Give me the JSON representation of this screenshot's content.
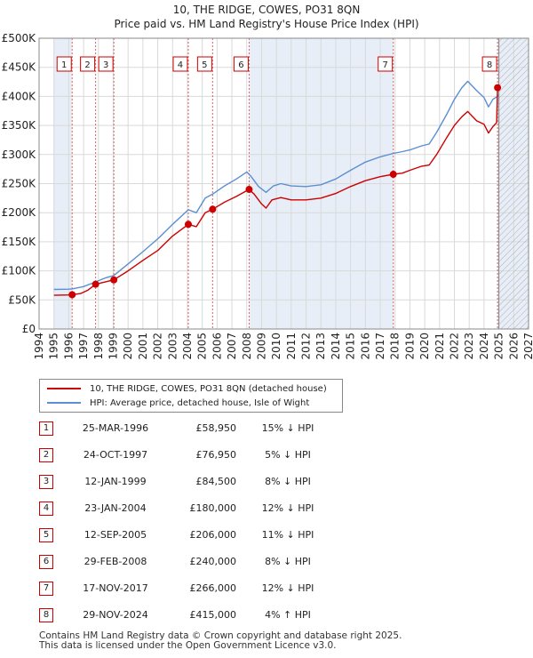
{
  "chart_data": {
    "type": "line",
    "title": "10, THE RIDGE, COWES, PO31 8QN",
    "subtitle": "Price paid vs. HM Land Registry's House Price Index (HPI)",
    "xlabel": "",
    "ylabel": "",
    "xlim": [
      1994,
      2027
    ],
    "ylim": [
      0,
      500000
    ],
    "y_ticks": [
      0,
      50000,
      100000,
      150000,
      200000,
      250000,
      300000,
      350000,
      400000,
      450000,
      500000
    ],
    "y_tick_labels": [
      "£0",
      "£50K",
      "£100K",
      "£150K",
      "£200K",
      "£250K",
      "£300K",
      "£350K",
      "£400K",
      "£450K",
      "£500K"
    ],
    "x_ticks": [
      1994,
      1995,
      1996,
      1997,
      1998,
      1999,
      2000,
      2001,
      2002,
      2003,
      2004,
      2005,
      2006,
      2007,
      2008,
      2009,
      2010,
      2011,
      2012,
      2013,
      2014,
      2015,
      2016,
      2017,
      2018,
      2019,
      2020,
      2021,
      2022,
      2023,
      2024,
      2025,
      2026,
      2027
    ],
    "x_tick_labels": [
      "1994",
      "1995",
      "1996",
      "1997",
      "1998",
      "1999",
      "2000",
      "2001",
      "2002",
      "2003",
      "2004",
      "2005",
      "2006",
      "2007",
      "2008",
      "2009",
      "2010",
      "2011",
      "2012",
      "2013",
      "2014",
      "2015",
      "2016",
      "2017",
      "2018",
      "2019",
      "2020",
      "2021",
      "2022",
      "2023",
      "2024",
      "2025",
      "2026",
      "2027"
    ],
    "grid": true,
    "shaded_regions": [
      [
        1995.0,
        1996.23
      ],
      [
        2008.16,
        2017.88
      ],
      [
        2024.91,
        2027
      ]
    ],
    "hatched_region": [
      2025.0,
      2027
    ],
    "series": [
      {
        "name": "10, THE RIDGE, COWES, PO31 8QN (detached house)",
        "color": "#cc0000",
        "x": [
          1995.0,
          1996.0,
          1996.23,
          1996.8,
          1997.3,
          1997.81,
          1998.3,
          1999.04,
          2000.0,
          2001.0,
          2002.0,
          2003.0,
          2004.06,
          2004.6,
          2005.2,
          2005.7,
          2006.5,
          2007.3,
          2008.16,
          2008.5,
          2009.0,
          2009.3,
          2009.7,
          2010.3,
          2011.0,
          2012.0,
          2013.0,
          2014.0,
          2015.0,
          2016.0,
          2017.0,
          2017.88,
          2018.5,
          2019.0,
          2019.8,
          2020.3,
          2020.8,
          2021.5,
          2022.0,
          2022.5,
          2022.9,
          2023.5,
          2024.0,
          2024.3,
          2024.6,
          2024.85,
          2024.91,
          2025.0
        ],
        "values": [
          58000,
          58500,
          58950,
          61000,
          67000,
          76950,
          80000,
          84500,
          100000,
          118000,
          135000,
          160000,
          180000,
          176000,
          200000,
          206000,
          218000,
          228000,
          240000,
          232000,
          215000,
          208000,
          222000,
          226000,
          222000,
          222000,
          225000,
          233000,
          245000,
          255000,
          262000,
          266000,
          268000,
          273000,
          280000,
          282000,
          300000,
          330000,
          350000,
          365000,
          374000,
          358000,
          352000,
          337000,
          348000,
          355000,
          415000,
          420000
        ]
      },
      {
        "name": "HPI: Average price, detached house, Isle of Wight",
        "color": "#5b8fd0",
        "x": [
          1995.0,
          1996.0,
          1996.23,
          1997.0,
          1997.81,
          1998.5,
          1999.04,
          2000.0,
          2001.0,
          2002.0,
          2003.0,
          2004.06,
          2004.6,
          2005.2,
          2005.7,
          2006.5,
          2007.3,
          2008.0,
          2008.3,
          2008.8,
          2009.3,
          2009.8,
          2010.3,
          2011.0,
          2012.0,
          2013.0,
          2014.0,
          2015.0,
          2016.0,
          2017.0,
          2017.88,
          2018.5,
          2019.0,
          2019.8,
          2020.3,
          2020.8,
          2021.5,
          2022.0,
          2022.5,
          2022.9,
          2023.5,
          2024.0,
          2024.3,
          2024.6,
          2024.91,
          2025.0
        ],
        "values": [
          68000,
          68500,
          69000,
          73000,
          81000,
          88000,
          92000,
          112000,
          133000,
          155000,
          180000,
          205000,
          200000,
          225000,
          232000,
          246000,
          258000,
          270000,
          262000,
          245000,
          235000,
          246000,
          250000,
          246000,
          245000,
          248000,
          258000,
          273000,
          287000,
          296000,
          302000,
          305000,
          308000,
          315000,
          318000,
          338000,
          370000,
          395000,
          415000,
          426000,
          410000,
          398000,
          382000,
          395000,
          400000,
          403000
        ]
      }
    ],
    "markers": [
      {
        "label": "1",
        "x": 1996.23,
        "value": 58950
      },
      {
        "label": "2",
        "x": 1997.81,
        "value": 76950
      },
      {
        "label": "3",
        "x": 1999.04,
        "value": 84500
      },
      {
        "label": "4",
        "x": 2004.06,
        "value": 180000
      },
      {
        "label": "5",
        "x": 2005.7,
        "value": 206000
      },
      {
        "label": "6",
        "x": 2008.16,
        "value": 240000
      },
      {
        "label": "7",
        "x": 2017.88,
        "value": 266000
      },
      {
        "label": "8",
        "x": 2024.91,
        "value": 415000
      }
    ]
  },
  "legend": {
    "items": [
      {
        "label": "10, THE RIDGE, COWES, PO31 8QN (detached house)",
        "color": "#cc0000"
      },
      {
        "label": "HPI: Average price, detached house, Isle of Wight",
        "color": "#5b8fd0"
      }
    ]
  },
  "sales": [
    {
      "num": "1",
      "date": "25-MAR-1996",
      "price": "£58,950",
      "hpi": "15% ↓ HPI"
    },
    {
      "num": "2",
      "date": "24-OCT-1997",
      "price": "£76,950",
      "hpi": "5% ↓ HPI"
    },
    {
      "num": "3",
      "date": "12-JAN-1999",
      "price": "£84,500",
      "hpi": "8% ↓ HPI"
    },
    {
      "num": "4",
      "date": "23-JAN-2004",
      "price": "£180,000",
      "hpi": "12% ↓ HPI"
    },
    {
      "num": "5",
      "date": "12-SEP-2005",
      "price": "£206,000",
      "hpi": "11% ↓ HPI"
    },
    {
      "num": "6",
      "date": "29-FEB-2008",
      "price": "£240,000",
      "hpi": "8% ↓ HPI"
    },
    {
      "num": "7",
      "date": "17-NOV-2017",
      "price": "£266,000",
      "hpi": "12% ↓ HPI"
    },
    {
      "num": "8",
      "date": "29-NOV-2024",
      "price": "£415,000",
      "hpi": "4% ↑ HPI"
    }
  ],
  "footer": {
    "line1": "Contains HM Land Registry data © Crown copyright and database right 2025.",
    "line2": "This data is licensed under the Open Government Licence v3.0."
  }
}
